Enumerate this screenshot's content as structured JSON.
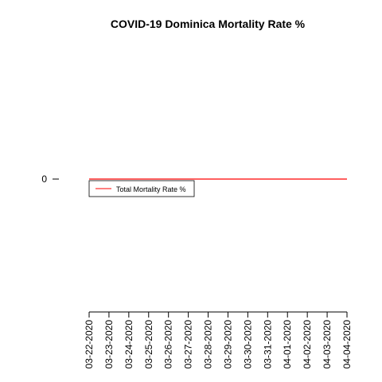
{
  "chart_data": {
    "type": "line",
    "title": "COVID-19 Dominica Mortality Rate %",
    "xlabel": "",
    "ylabel": "",
    "x": [
      "03-22-2020",
      "03-23-2020",
      "03-24-2020",
      "03-25-2020",
      "03-26-2020",
      "03-27-2020",
      "03-28-2020",
      "03-29-2020",
      "03-30-2020",
      "03-31-2020",
      "04-01-2020",
      "04-02-2020",
      "04-03-2020",
      "04-04-2020"
    ],
    "series": [
      {
        "name": "Total Mortality Rate %",
        "color": "#ff0000",
        "values": [
          0,
          0,
          0,
          0,
          0,
          0,
          0,
          0,
          0,
          0,
          0,
          0,
          0,
          0
        ]
      }
    ],
    "y_ticks": [
      "0"
    ],
    "legend_position": "top-left",
    "grid": false
  }
}
